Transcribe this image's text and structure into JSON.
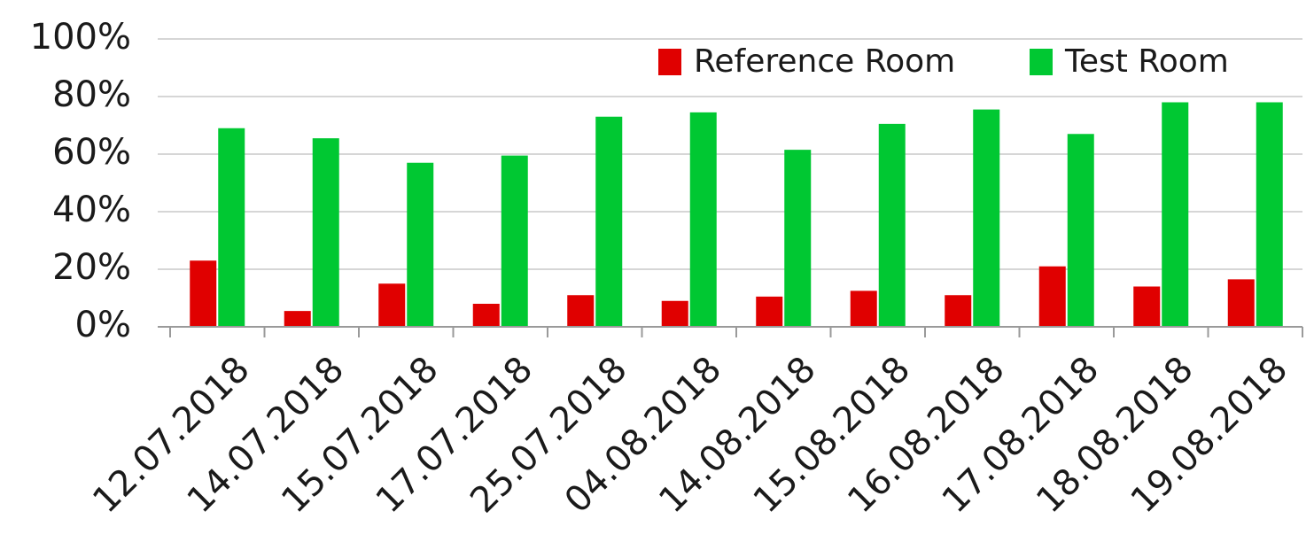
{
  "chart_data": {
    "type": "bar",
    "title": "",
    "xlabel": "",
    "ylabel": "",
    "ylim": [
      0,
      100
    ],
    "y_ticks": [
      "0%",
      "20%",
      "40%",
      "60%",
      "80%",
      "100%"
    ],
    "grid": true,
    "legend_position": "top-right",
    "categories": [
      "12.07.2018",
      "14.07.2018",
      "15.07.2018",
      "17.07.2018",
      "25.07.2018",
      "04.08.2018",
      "14.08.2018",
      "15.08.2018",
      "16.08.2018",
      "17.08.2018",
      "18.08.2018",
      "19.08.2018"
    ],
    "series": [
      {
        "name": "Reference Room",
        "color": "#e00000",
        "values": [
          23,
          5.5,
          15,
          8,
          11,
          9,
          10.5,
          12.5,
          11,
          21,
          14,
          16.5
        ]
      },
      {
        "name": "Test Room",
        "color": "#00c832",
        "values": [
          69,
          65.5,
          57,
          59.5,
          73,
          74.5,
          61.5,
          70.5,
          75.5,
          67,
          78,
          78
        ]
      }
    ]
  }
}
